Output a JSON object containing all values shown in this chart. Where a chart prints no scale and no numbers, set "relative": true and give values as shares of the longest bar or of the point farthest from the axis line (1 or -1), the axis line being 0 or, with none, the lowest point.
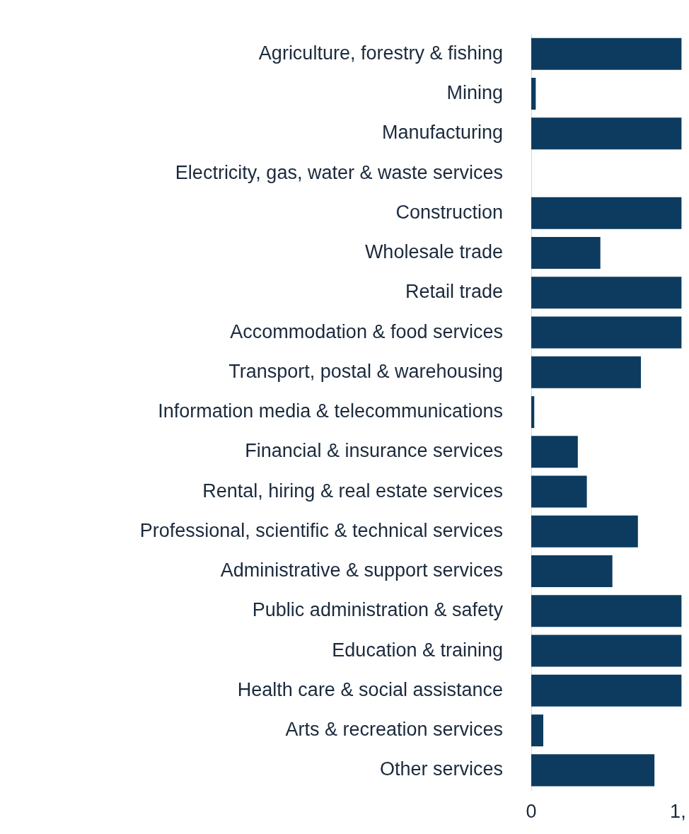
{
  "chart_data": {
    "type": "bar",
    "orientation": "horizontal",
    "color": "#0c3b5f",
    "relative": true,
    "categories": [
      "Agriculture, forestry & fishing",
      "Mining",
      "Manufacturing",
      "Electricity, gas, water & waste services",
      "Construction",
      "Wholesale trade",
      "Retail trade",
      "Accommodation & food services",
      "Transport, postal & warehousing",
      "Information media & telecommunications",
      "Financial & insurance services",
      "Rental, hiring & real estate services",
      "Professional, scientific & technical services",
      "Administrative & support services",
      "Public administration & safety",
      "Education & training",
      "Health care & social assistance",
      "Arts & recreation services",
      "Other services"
    ],
    "values": [
      1,
      0.03,
      1,
      0,
      1,
      0.46,
      1,
      1,
      0.73,
      0.02,
      0.31,
      0.37,
      0.71,
      0.54,
      1,
      1,
      1,
      0.08,
      0.82
    ],
    "annotations": [
      "0",
      "1,"
    ],
    "legend": false
  }
}
